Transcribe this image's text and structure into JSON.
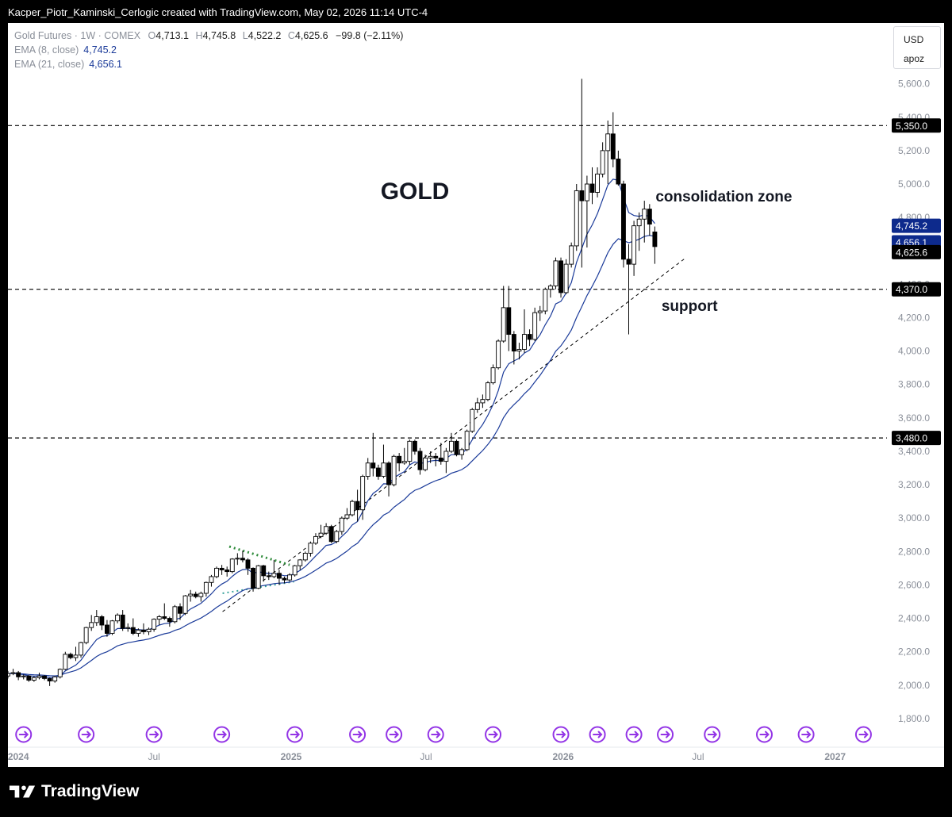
{
  "header": {
    "caption": "Kacper_Piotr_Kaminski_Cerlogic created with TradingView.com, May 02, 2026 11:14 UTC-4"
  },
  "legend": {
    "symbol": "Gold Futures · 1W · COMEX",
    "open_label": "O",
    "open": "4,713.1",
    "high_label": "H",
    "high": "4,745.8",
    "low_label": "L",
    "low": "4,522.2",
    "close_label": "C",
    "close": "4,625.6",
    "change": "−99.8 (−2.11%)",
    "ema8_label": "EMA (8, close)",
    "ema8_value": "4,745.2",
    "ema21_label": "EMA (21, close)",
    "ema21_value": "4,656.1"
  },
  "currency_box": {
    "currency": "USD",
    "unit": "apoz"
  },
  "footer": {
    "brand": "TradingView"
  },
  "colors": {
    "ema": "#1a3a99",
    "candle_up": "#ffffff",
    "candle_down": "#000000",
    "label_dark": "#000000",
    "label_blue": "#0d2a8c",
    "event_icon": "#9334e6",
    "triangle_dots_upper": "#2e8b3a",
    "triangle_dots_lower": "#3aa39c"
  },
  "chart_data": {
    "type": "candlestick",
    "title": "GOLD",
    "symbol": "Gold Futures",
    "timeframe": "1W",
    "exchange": "COMEX",
    "ylim": [
      1700,
      5850
    ],
    "xlim": [
      "2023-12-18",
      "2027-02-15"
    ],
    "y_ticks": [
      "1,800.0",
      "2,000.0",
      "2,200.0",
      "2,400.0",
      "2,600.0",
      "2,800.0",
      "3,000.0",
      "3,200.0",
      "3,400.0",
      "3,600.0",
      "3,800.0",
      "4,000.0",
      "4,200.0",
      "4,400.0",
      "4,600.0",
      "4,800.0",
      "5,000.0",
      "5,200.0",
      "5,400.0",
      "5,600.0"
    ],
    "x_ticks": [
      {
        "label": "2024",
        "date": "2024-01-01",
        "bold": true
      },
      {
        "label": "Jul",
        "date": "2024-07-01",
        "bold": false
      },
      {
        "label": "2025",
        "date": "2025-01-01",
        "bold": true
      },
      {
        "label": "Jul",
        "date": "2025-07-01",
        "bold": false
      },
      {
        "label": "2026",
        "date": "2026-01-01",
        "bold": true
      },
      {
        "label": "Jul",
        "date": "2026-07-01",
        "bold": false
      },
      {
        "label": "2027",
        "date": "2027-01-01",
        "bold": true
      }
    ],
    "horizontal_levels": [
      {
        "value": 5350,
        "label": "5,350.0"
      },
      {
        "value": 4370,
        "label": "4,370.0"
      },
      {
        "value": 3480,
        "label": "3,480.0"
      }
    ],
    "price_labels": [
      {
        "value": 4745.2,
        "label": "4,745.2",
        "style": "ema"
      },
      {
        "value": 4656.1,
        "label": "4,656.1",
        "style": "ema"
      },
      {
        "value": 4625.6,
        "label": "4,625.6",
        "style": "last"
      }
    ],
    "annotations": [
      {
        "text": "GOLD",
        "date": "2025-05-01",
        "value": 4910,
        "size": 30
      },
      {
        "text": "consolidation zone",
        "date": "2026-05-05",
        "value": 4895,
        "size": 19
      },
      {
        "text": "support",
        "date": "2026-05-13",
        "value": 4240,
        "size": 19
      }
    ],
    "trendlines": [
      {
        "name": "support",
        "from": {
          "date": "2024-10-01",
          "value": 2440
        },
        "to": {
          "date": "2026-06-15",
          "value": 4560
        },
        "style": "dashed"
      },
      {
        "name": "triangle-upper",
        "from": {
          "date": "2024-10-10",
          "value": 2830
        },
        "to": {
          "date": "2024-12-30",
          "value": 2720
        },
        "style": "dotted"
      },
      {
        "name": "triangle-lower",
        "from": {
          "date": "2024-10-01",
          "value": 2550
        },
        "to": {
          "date": "2025-01-05",
          "value": 2620
        },
        "style": "dotted"
      }
    ],
    "event_markers": [
      "2024-01-08",
      "2024-04-01",
      "2024-07-01",
      "2024-09-30",
      "2025-01-06",
      "2025-03-31",
      "2025-05-19",
      "2025-07-14",
      "2025-09-29",
      "2025-12-29",
      "2026-02-16",
      "2026-04-06",
      "2026-05-18",
      "2026-07-20",
      "2026-09-28",
      "2026-11-23",
      "2027-02-08"
    ],
    "candles": [
      {
        "date": "2023-12-18",
        "o": 2055,
        "h": 2085,
        "l": 2040,
        "c": 2070
      },
      {
        "date": "2023-12-25",
        "o": 2070,
        "h": 2098,
        "l": 2060,
        "c": 2075
      },
      {
        "date": "2024-01-01",
        "o": 2075,
        "h": 2085,
        "l": 2030,
        "c": 2050
      },
      {
        "date": "2024-01-08",
        "o": 2050,
        "h": 2065,
        "l": 2035,
        "c": 2055
      },
      {
        "date": "2024-01-15",
        "o": 2055,
        "h": 2060,
        "l": 2020,
        "c": 2030
      },
      {
        "date": "2024-01-22",
        "o": 2030,
        "h": 2055,
        "l": 2020,
        "c": 2045
      },
      {
        "date": "2024-01-29",
        "o": 2045,
        "h": 2075,
        "l": 2035,
        "c": 2055
      },
      {
        "date": "2024-02-05",
        "o": 2055,
        "h": 2060,
        "l": 2030,
        "c": 2040
      },
      {
        "date": "2024-02-12",
        "o": 2040,
        "h": 2045,
        "l": 1995,
        "c": 2025
      },
      {
        "date": "2024-02-19",
        "o": 2025,
        "h": 2055,
        "l": 2015,
        "c": 2050
      },
      {
        "date": "2024-02-26",
        "o": 2050,
        "h": 2100,
        "l": 2040,
        "c": 2095
      },
      {
        "date": "2024-03-04",
        "o": 2095,
        "h": 2200,
        "l": 2090,
        "c": 2185
      },
      {
        "date": "2024-03-11",
        "o": 2185,
        "h": 2195,
        "l": 2155,
        "c": 2165
      },
      {
        "date": "2024-03-18",
        "o": 2165,
        "h": 2230,
        "l": 2145,
        "c": 2180
      },
      {
        "date": "2024-03-25",
        "o": 2180,
        "h": 2260,
        "l": 2165,
        "c": 2255
      },
      {
        "date": "2024-04-01",
        "o": 2255,
        "h": 2350,
        "l": 2245,
        "c": 2345
      },
      {
        "date": "2024-04-08",
        "o": 2345,
        "h": 2420,
        "l": 2325,
        "c": 2375
      },
      {
        "date": "2024-04-15",
        "o": 2375,
        "h": 2450,
        "l": 2355,
        "c": 2410
      },
      {
        "date": "2024-04-22",
        "o": 2410,
        "h": 2420,
        "l": 2330,
        "c": 2360
      },
      {
        "date": "2024-04-29",
        "o": 2360,
        "h": 2390,
        "l": 2290,
        "c": 2310
      },
      {
        "date": "2024-05-06",
        "o": 2310,
        "h": 2390,
        "l": 2300,
        "c": 2385
      },
      {
        "date": "2024-05-13",
        "o": 2385,
        "h": 2430,
        "l": 2370,
        "c": 2420
      },
      {
        "date": "2024-05-20",
        "o": 2420,
        "h": 2450,
        "l": 2325,
        "c": 2340
      },
      {
        "date": "2024-05-27",
        "o": 2340,
        "h": 2370,
        "l": 2320,
        "c": 2345
      },
      {
        "date": "2024-06-03",
        "o": 2345,
        "h": 2400,
        "l": 2300,
        "c": 2310
      },
      {
        "date": "2024-06-10",
        "o": 2310,
        "h": 2340,
        "l": 2290,
        "c": 2330
      },
      {
        "date": "2024-06-17",
        "o": 2330,
        "h": 2370,
        "l": 2305,
        "c": 2320
      },
      {
        "date": "2024-06-24",
        "o": 2320,
        "h": 2345,
        "l": 2300,
        "c": 2335
      },
      {
        "date": "2024-07-01",
        "o": 2335,
        "h": 2400,
        "l": 2320,
        "c": 2395
      },
      {
        "date": "2024-07-08",
        "o": 2395,
        "h": 2420,
        "l": 2360,
        "c": 2410
      },
      {
        "date": "2024-07-15",
        "o": 2410,
        "h": 2490,
        "l": 2390,
        "c": 2400
      },
      {
        "date": "2024-07-22",
        "o": 2400,
        "h": 2410,
        "l": 2350,
        "c": 2380
      },
      {
        "date": "2024-07-29",
        "o": 2380,
        "h": 2480,
        "l": 2370,
        "c": 2470
      },
      {
        "date": "2024-08-05",
        "o": 2470,
        "h": 2490,
        "l": 2390,
        "c": 2430
      },
      {
        "date": "2024-08-12",
        "o": 2430,
        "h": 2540,
        "l": 2420,
        "c": 2535
      },
      {
        "date": "2024-08-19",
        "o": 2535,
        "h": 2570,
        "l": 2500,
        "c": 2545
      },
      {
        "date": "2024-08-26",
        "o": 2545,
        "h": 2560,
        "l": 2520,
        "c": 2530
      },
      {
        "date": "2024-09-02",
        "o": 2530,
        "h": 2560,
        "l": 2500,
        "c": 2550
      },
      {
        "date": "2024-09-09",
        "o": 2550,
        "h": 2620,
        "l": 2530,
        "c": 2615
      },
      {
        "date": "2024-09-16",
        "o": 2615,
        "h": 2660,
        "l": 2590,
        "c": 2650
      },
      {
        "date": "2024-09-23",
        "o": 2650,
        "h": 2710,
        "l": 2640,
        "c": 2700
      },
      {
        "date": "2024-09-30",
        "o": 2700,
        "h": 2720,
        "l": 2660,
        "c": 2690
      },
      {
        "date": "2024-10-07",
        "o": 2690,
        "h": 2710,
        "l": 2650,
        "c": 2680
      },
      {
        "date": "2024-10-14",
        "o": 2680,
        "h": 2760,
        "l": 2670,
        "c": 2755
      },
      {
        "date": "2024-10-21",
        "o": 2755,
        "h": 2790,
        "l": 2720,
        "c": 2760
      },
      {
        "date": "2024-10-28",
        "o": 2760,
        "h": 2805,
        "l": 2735,
        "c": 2750
      },
      {
        "date": "2024-11-04",
        "o": 2750,
        "h": 2760,
        "l": 2660,
        "c": 2700
      },
      {
        "date": "2024-11-11",
        "o": 2700,
        "h": 2705,
        "l": 2560,
        "c": 2580
      },
      {
        "date": "2024-11-18",
        "o": 2580,
        "h": 2720,
        "l": 2575,
        "c": 2715
      },
      {
        "date": "2024-11-25",
        "o": 2715,
        "h": 2720,
        "l": 2620,
        "c": 2655
      },
      {
        "date": "2024-12-02",
        "o": 2655,
        "h": 2680,
        "l": 2630,
        "c": 2650
      },
      {
        "date": "2024-12-09",
        "o": 2650,
        "h": 2750,
        "l": 2640,
        "c": 2670
      },
      {
        "date": "2024-12-16",
        "o": 2670,
        "h": 2690,
        "l": 2600,
        "c": 2640
      },
      {
        "date": "2024-12-23",
        "o": 2640,
        "h": 2650,
        "l": 2610,
        "c": 2630
      },
      {
        "date": "2024-12-30",
        "o": 2630,
        "h": 2670,
        "l": 2620,
        "c": 2660
      },
      {
        "date": "2025-01-06",
        "o": 2660,
        "h": 2720,
        "l": 2650,
        "c": 2715
      },
      {
        "date": "2025-01-13",
        "o": 2715,
        "h": 2755,
        "l": 2690,
        "c": 2750
      },
      {
        "date": "2025-01-20",
        "o": 2750,
        "h": 2800,
        "l": 2740,
        "c": 2790
      },
      {
        "date": "2025-01-27",
        "o": 2790,
        "h": 2860,
        "l": 2770,
        "c": 2850
      },
      {
        "date": "2025-02-03",
        "o": 2850,
        "h": 2910,
        "l": 2840,
        "c": 2890
      },
      {
        "date": "2025-02-10",
        "o": 2890,
        "h": 2960,
        "l": 2880,
        "c": 2910
      },
      {
        "date": "2025-02-17",
        "o": 2910,
        "h": 2970,
        "l": 2900,
        "c": 2950
      },
      {
        "date": "2025-02-24",
        "o": 2950,
        "h": 2960,
        "l": 2850,
        "c": 2860
      },
      {
        "date": "2025-03-03",
        "o": 2860,
        "h": 2930,
        "l": 2850,
        "c": 2920
      },
      {
        "date": "2025-03-10",
        "o": 2920,
        "h": 3010,
        "l": 2900,
        "c": 3000
      },
      {
        "date": "2025-03-17",
        "o": 3000,
        "h": 3060,
        "l": 2990,
        "c": 3020
      },
      {
        "date": "2025-03-24",
        "o": 3020,
        "h": 3110,
        "l": 3010,
        "c": 3100
      },
      {
        "date": "2025-03-31",
        "o": 3100,
        "h": 3170,
        "l": 2980,
        "c": 3050
      },
      {
        "date": "2025-04-07",
        "o": 3050,
        "h": 3260,
        "l": 2990,
        "c": 3250
      },
      {
        "date": "2025-04-14",
        "o": 3250,
        "h": 3360,
        "l": 3230,
        "c": 3330
      },
      {
        "date": "2025-04-21",
        "o": 3330,
        "h": 3510,
        "l": 3250,
        "c": 3300
      },
      {
        "date": "2025-04-28",
        "o": 3300,
        "h": 3320,
        "l": 3230,
        "c": 3250
      },
      {
        "date": "2025-05-05",
        "o": 3250,
        "h": 3440,
        "l": 3240,
        "c": 3330
      },
      {
        "date": "2025-05-12",
        "o": 3330,
        "h": 3340,
        "l": 3130,
        "c": 3200
      },
      {
        "date": "2025-05-19",
        "o": 3200,
        "h": 3380,
        "l": 3190,
        "c": 3370
      },
      {
        "date": "2025-05-26",
        "o": 3370,
        "h": 3390,
        "l": 3280,
        "c": 3330
      },
      {
        "date": "2025-06-02",
        "o": 3330,
        "h": 3420,
        "l": 3320,
        "c": 3340
      },
      {
        "date": "2025-06-09",
        "o": 3340,
        "h": 3470,
        "l": 3320,
        "c": 3460
      },
      {
        "date": "2025-06-16",
        "o": 3460,
        "h": 3470,
        "l": 3380,
        "c": 3400
      },
      {
        "date": "2025-06-23",
        "o": 3400,
        "h": 3420,
        "l": 3260,
        "c": 3290
      },
      {
        "date": "2025-06-30",
        "o": 3290,
        "h": 3380,
        "l": 3280,
        "c": 3360
      },
      {
        "date": "2025-07-07",
        "o": 3360,
        "h": 3400,
        "l": 3330,
        "c": 3370
      },
      {
        "date": "2025-07-14",
        "o": 3370,
        "h": 3390,
        "l": 3310,
        "c": 3360
      },
      {
        "date": "2025-07-21",
        "o": 3360,
        "h": 3450,
        "l": 3320,
        "c": 3340
      },
      {
        "date": "2025-07-28",
        "o": 3340,
        "h": 3420,
        "l": 3270,
        "c": 3400
      },
      {
        "date": "2025-08-04",
        "o": 3400,
        "h": 3510,
        "l": 3390,
        "c": 3460
      },
      {
        "date": "2025-08-11",
        "o": 3460,
        "h": 3470,
        "l": 3370,
        "c": 3380
      },
      {
        "date": "2025-08-18",
        "o": 3380,
        "h": 3420,
        "l": 3350,
        "c": 3410
      },
      {
        "date": "2025-08-25",
        "o": 3410,
        "h": 3530,
        "l": 3400,
        "c": 3520
      },
      {
        "date": "2025-09-01",
        "o": 3520,
        "h": 3660,
        "l": 3510,
        "c": 3650
      },
      {
        "date": "2025-09-08",
        "o": 3650,
        "h": 3720,
        "l": 3630,
        "c": 3690
      },
      {
        "date": "2025-09-15",
        "o": 3690,
        "h": 3740,
        "l": 3660,
        "c": 3710
      },
      {
        "date": "2025-09-22",
        "o": 3710,
        "h": 3820,
        "l": 3700,
        "c": 3810
      },
      {
        "date": "2025-09-29",
        "o": 3810,
        "h": 3920,
        "l": 3800,
        "c": 3900
      },
      {
        "date": "2025-10-06",
        "o": 3900,
        "h": 4070,
        "l": 3890,
        "c": 4060
      },
      {
        "date": "2025-10-13",
        "o": 4060,
        "h": 4390,
        "l": 4050,
        "c": 4260
      },
      {
        "date": "2025-10-20",
        "o": 4260,
        "h": 4390,
        "l": 4000,
        "c": 4100
      },
      {
        "date": "2025-10-27",
        "o": 4100,
        "h": 4120,
        "l": 3920,
        "c": 4000
      },
      {
        "date": "2025-11-03",
        "o": 4000,
        "h": 4050,
        "l": 3950,
        "c": 4010
      },
      {
        "date": "2025-11-10",
        "o": 4010,
        "h": 4250,
        "l": 3990,
        "c": 4100
      },
      {
        "date": "2025-11-17",
        "o": 4100,
        "h": 4130,
        "l": 4030,
        "c": 4070
      },
      {
        "date": "2025-11-24",
        "o": 4070,
        "h": 4260,
        "l": 4060,
        "c": 4230
      },
      {
        "date": "2025-12-01",
        "o": 4230,
        "h": 4270,
        "l": 4180,
        "c": 4240
      },
      {
        "date": "2025-12-08",
        "o": 4240,
        "h": 4380,
        "l": 4220,
        "c": 4370
      },
      {
        "date": "2025-12-15",
        "o": 4370,
        "h": 4400,
        "l": 4320,
        "c": 4390
      },
      {
        "date": "2025-12-22",
        "o": 4390,
        "h": 4560,
        "l": 4370,
        "c": 4540
      },
      {
        "date": "2025-12-29",
        "o": 4540,
        "h": 4560,
        "l": 4320,
        "c": 4350
      },
      {
        "date": "2026-01-05",
        "o": 4350,
        "h": 4550,
        "l": 4340,
        "c": 4520
      },
      {
        "date": "2026-01-12",
        "o": 4520,
        "h": 4650,
        "l": 4500,
        "c": 4630
      },
      {
        "date": "2026-01-19",
        "o": 4630,
        "h": 5000,
        "l": 4600,
        "c": 4960
      },
      {
        "date": "2026-01-26",
        "o": 4960,
        "h": 5630,
        "l": 4500,
        "c": 4900
      },
      {
        "date": "2026-02-02",
        "o": 4900,
        "h": 5050,
        "l": 4620,
        "c": 5000
      },
      {
        "date": "2026-02-09",
        "o": 5000,
        "h": 5100,
        "l": 4880,
        "c": 4950
      },
      {
        "date": "2026-02-16",
        "o": 4950,
        "h": 5100,
        "l": 4920,
        "c": 5060
      },
      {
        "date": "2026-02-23",
        "o": 5060,
        "h": 5250,
        "l": 5040,
        "c": 5200
      },
      {
        "date": "2026-03-02",
        "o": 5200,
        "h": 5380,
        "l": 5000,
        "c": 5300
      },
      {
        "date": "2026-03-09",
        "o": 5300,
        "h": 5430,
        "l": 5100,
        "c": 5150
      },
      {
        "date": "2026-03-16",
        "o": 5150,
        "h": 5200,
        "l": 4990,
        "c": 5000
      },
      {
        "date": "2026-03-23",
        "o": 5000,
        "h": 5020,
        "l": 4500,
        "c": 4550
      },
      {
        "date": "2026-03-30",
        "o": 4550,
        "h": 4640,
        "l": 4100,
        "c": 4520
      },
      {
        "date": "2026-04-06",
        "o": 4520,
        "h": 4780,
        "l": 4450,
        "c": 4750
      },
      {
        "date": "2026-04-13",
        "o": 4750,
        "h": 4830,
        "l": 4600,
        "c": 4790
      },
      {
        "date": "2026-04-20",
        "o": 4790,
        "h": 4900,
        "l": 4650,
        "c": 4850
      },
      {
        "date": "2026-04-27",
        "o": 4850,
        "h": 4880,
        "l": 4690,
        "c": 4760
      },
      {
        "date": "2026-05-04",
        "o": 4713.1,
        "h": 4745.8,
        "l": 4522.2,
        "c": 4625.6
      }
    ]
  }
}
